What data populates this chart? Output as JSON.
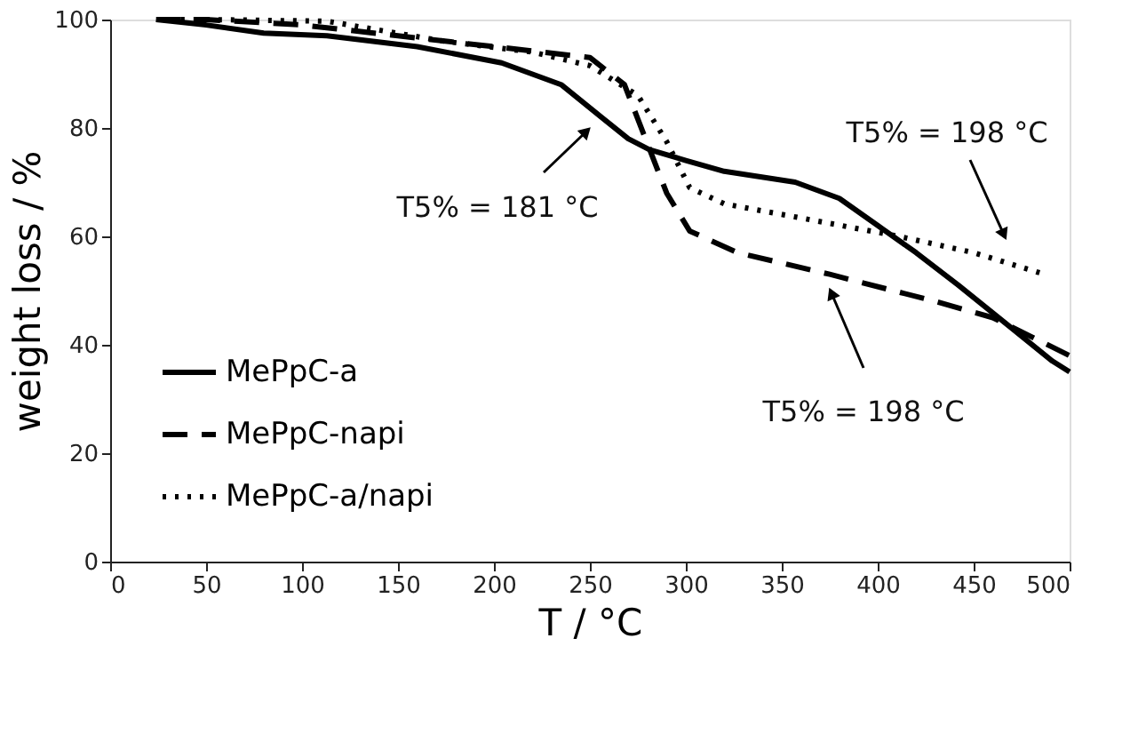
{
  "chart_data": {
    "type": "line",
    "xlabel": "T / °C",
    "ylabel": "weight loss / %",
    "xlim": [
      0,
      500
    ],
    "ylim": [
      0,
      100
    ],
    "xticks": [
      0,
      50,
      100,
      150,
      200,
      250,
      300,
      350,
      400,
      450,
      500
    ],
    "yticks": [
      0,
      20,
      40,
      60,
      80,
      100
    ],
    "grid": false,
    "legend": "bottom left",
    "series": [
      {
        "name": "MePpC-a",
        "color": "#000000",
        "line_style": "solid",
        "x": [
          24,
          50,
          80,
          113,
          160,
          204,
          235,
          256,
          270,
          281,
          300,
          320,
          357,
          380,
          400,
          420,
          442,
          470,
          491,
          500
        ],
        "values": [
          100,
          99,
          97.5,
          97,
          95,
          92,
          88,
          82,
          78,
          76,
          74,
          72,
          70,
          67,
          62,
          57,
          51,
          43,
          37,
          35
        ]
      },
      {
        "name": "MePpC-napi",
        "color": "#000000",
        "line_style": "dashed",
        "x": [
          24,
          50,
          100,
          150,
          200,
          250,
          268,
          279,
          290,
          302,
          327,
          375,
          430,
          460,
          500
        ],
        "values": [
          100,
          100,
          99,
          97,
          95,
          93,
          88,
          78,
          68,
          61,
          57,
          53,
          48,
          45,
          38
        ]
      },
      {
        "name": "MePpC-a/napi",
        "color": "#000000",
        "line_style": "dotted",
        "x": [
          24,
          50,
          113,
          174,
          220,
          250,
          275,
          290,
          302,
          320,
          366,
          411,
          450,
          487
        ],
        "values": [
          100,
          100,
          99.7,
          96,
          94,
          91.5,
          86,
          77.5,
          69,
          66,
          63,
          60,
          57,
          53
        ]
      }
    ],
    "annotations": [
      "T5% = 181 °C",
      "T5% = 198 °C",
      "T5% = 198 °C"
    ]
  }
}
